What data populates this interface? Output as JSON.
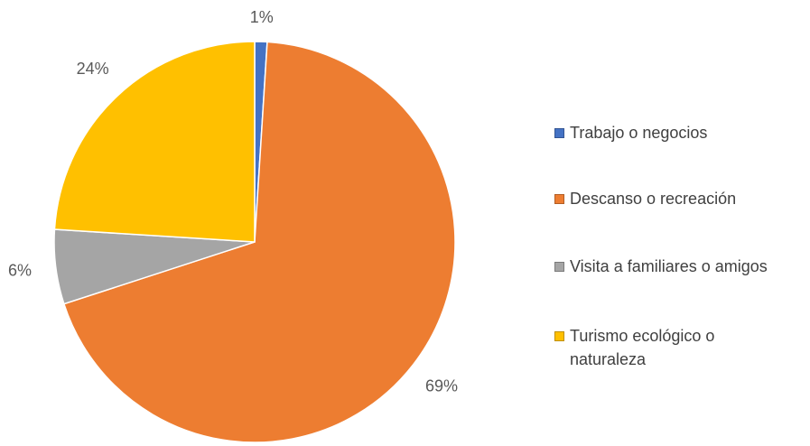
{
  "chart_data": {
    "type": "pie",
    "categories": [
      "Trabajo o negocios",
      "Descanso o recreación",
      "Visita a familiares o amigos",
      "Turismo ecológico o naturaleza"
    ],
    "values": [
      1,
      69,
      6,
      24
    ],
    "value_labels": [
      "1%",
      "69%",
      "6%",
      "24%"
    ],
    "colors": [
      "#4472c4",
      "#ed7d31",
      "#a5a5a5",
      "#ffc000"
    ],
    "legend": "right"
  }
}
